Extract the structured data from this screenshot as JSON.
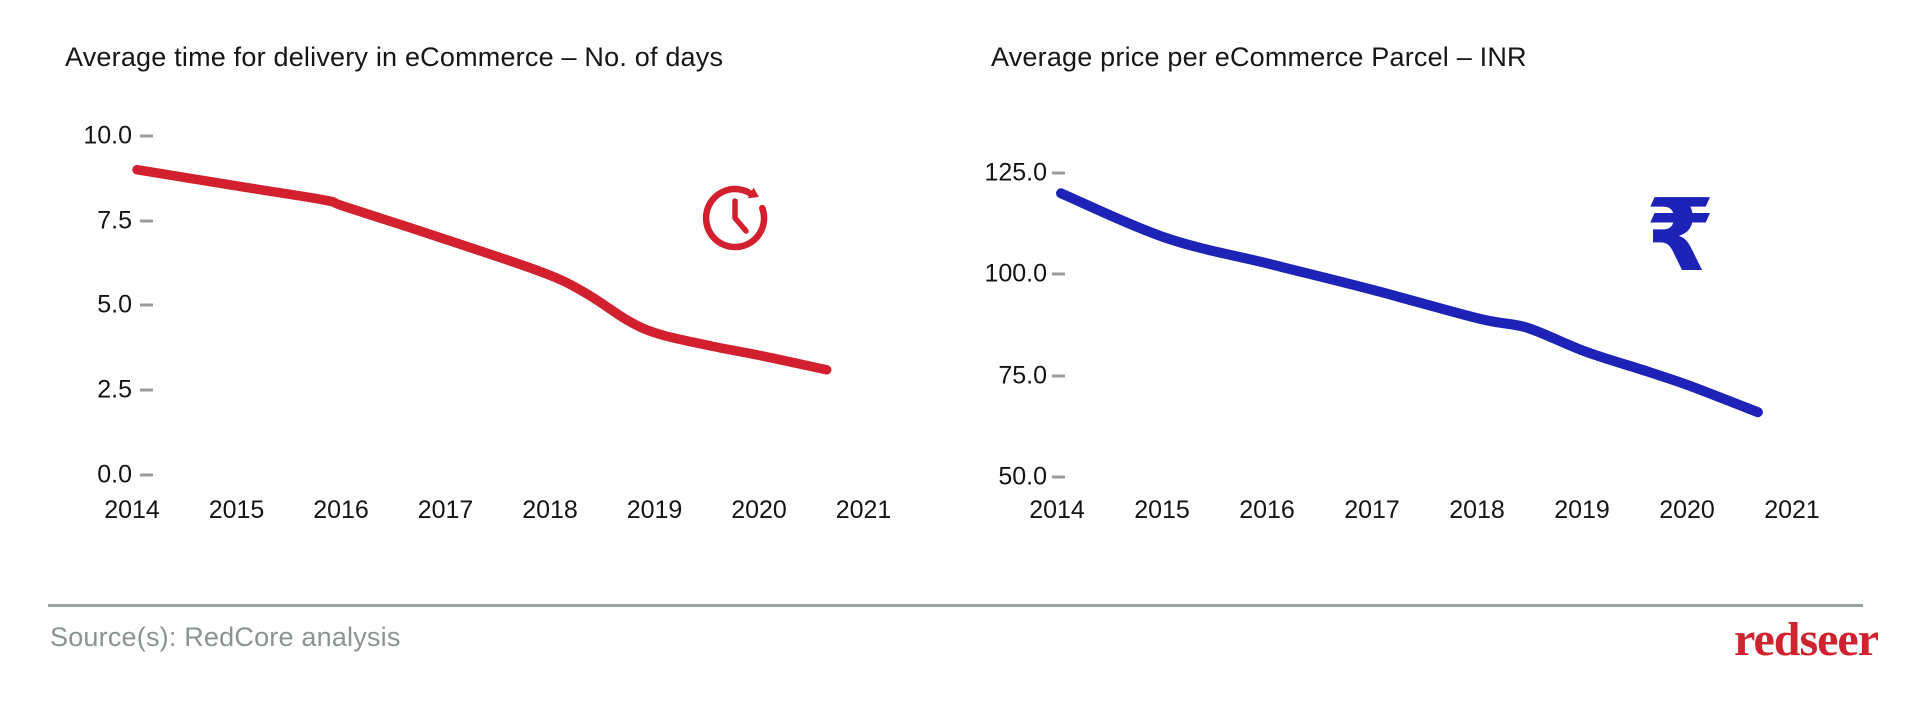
{
  "page": {
    "background": "#ffffff"
  },
  "axis_style": {
    "tick_color": "#9b9b9b",
    "label_color": "#141414"
  },
  "chart_data": [
    {
      "type": "line",
      "title": "Average time for delivery in eCommerce – No. of days",
      "series_name": "Average delivery time (days)",
      "color": "#d2202f",
      "icon": "clock",
      "x_categories": [
        "2014",
        "2015",
        "2016",
        "2017",
        "2018",
        "2019",
        "2020",
        "2021"
      ],
      "values_by_year": [
        9.0,
        8.5,
        7.9,
        6.9,
        5.8,
        4.1,
        3.5,
        null
      ],
      "points": [
        [
          2014,
          9.0
        ],
        [
          2015,
          8.5
        ],
        [
          2015.8,
          8.1
        ],
        [
          2016,
          7.9
        ],
        [
          2017,
          6.9
        ],
        [
          2017.9,
          5.95
        ],
        [
          2018.3,
          5.35
        ],
        [
          2018.7,
          4.55
        ],
        [
          2019,
          4.15
        ],
        [
          2019.5,
          3.8
        ],
        [
          2020,
          3.5
        ],
        [
          2020.6,
          3.1
        ]
      ],
      "y_ticks": [
        {
          "label": "0.0",
          "value": 0
        },
        {
          "label": "2.5",
          "value": 2.5
        },
        {
          "label": "5.0",
          "value": 5
        },
        {
          "label": "7.5",
          "value": 7.5
        },
        {
          "label": "10.0",
          "value": 10
        }
      ],
      "ylim": [
        0,
        10
      ],
      "xlim": [
        2014,
        2021
      ],
      "grid": false,
      "legend": "none",
      "note": "line ends between 2020 and 2021 (~2020.6)"
    },
    {
      "type": "line",
      "title": "Average price per eCommerce Parcel – INR",
      "series_name": "Average price per parcel (INR)",
      "color": "#1e23b8",
      "icon": "rupee",
      "icon_glyph": "₹",
      "x_categories": [
        "2014",
        "2015",
        "2016",
        "2017",
        "2018",
        "2019",
        "2020",
        "2021"
      ],
      "values_by_year": [
        120,
        109,
        102,
        96,
        89,
        81,
        72,
        null
      ],
      "points": [
        [
          2014,
          120
        ],
        [
          2015,
          109
        ],
        [
          2016,
          102.5
        ],
        [
          2017,
          96
        ],
        [
          2018,
          89
        ],
        [
          2018.45,
          86.8
        ],
        [
          2019,
          81
        ],
        [
          2019.6,
          76
        ],
        [
          2020,
          72.5
        ],
        [
          2020.65,
          66
        ]
      ],
      "y_ticks": [
        {
          "label": "50.0",
          "value": 50
        },
        {
          "label": "75.0",
          "value": 75
        },
        {
          "label": "100.0",
          "value": 100
        },
        {
          "label": "125.0",
          "value": 125
        }
      ],
      "ylim": [
        50,
        125
      ],
      "xlim": [
        2014,
        2021
      ],
      "grid": false,
      "legend": "none",
      "note": "line ends between 2020 and 2021 (~2020.65)"
    }
  ],
  "footer": {
    "source": "Source(s): RedCore analysis",
    "brand": "redseer",
    "divider_color": "#9aa3a0",
    "source_color": "#8b9390",
    "brand_color": "#cf2430"
  }
}
